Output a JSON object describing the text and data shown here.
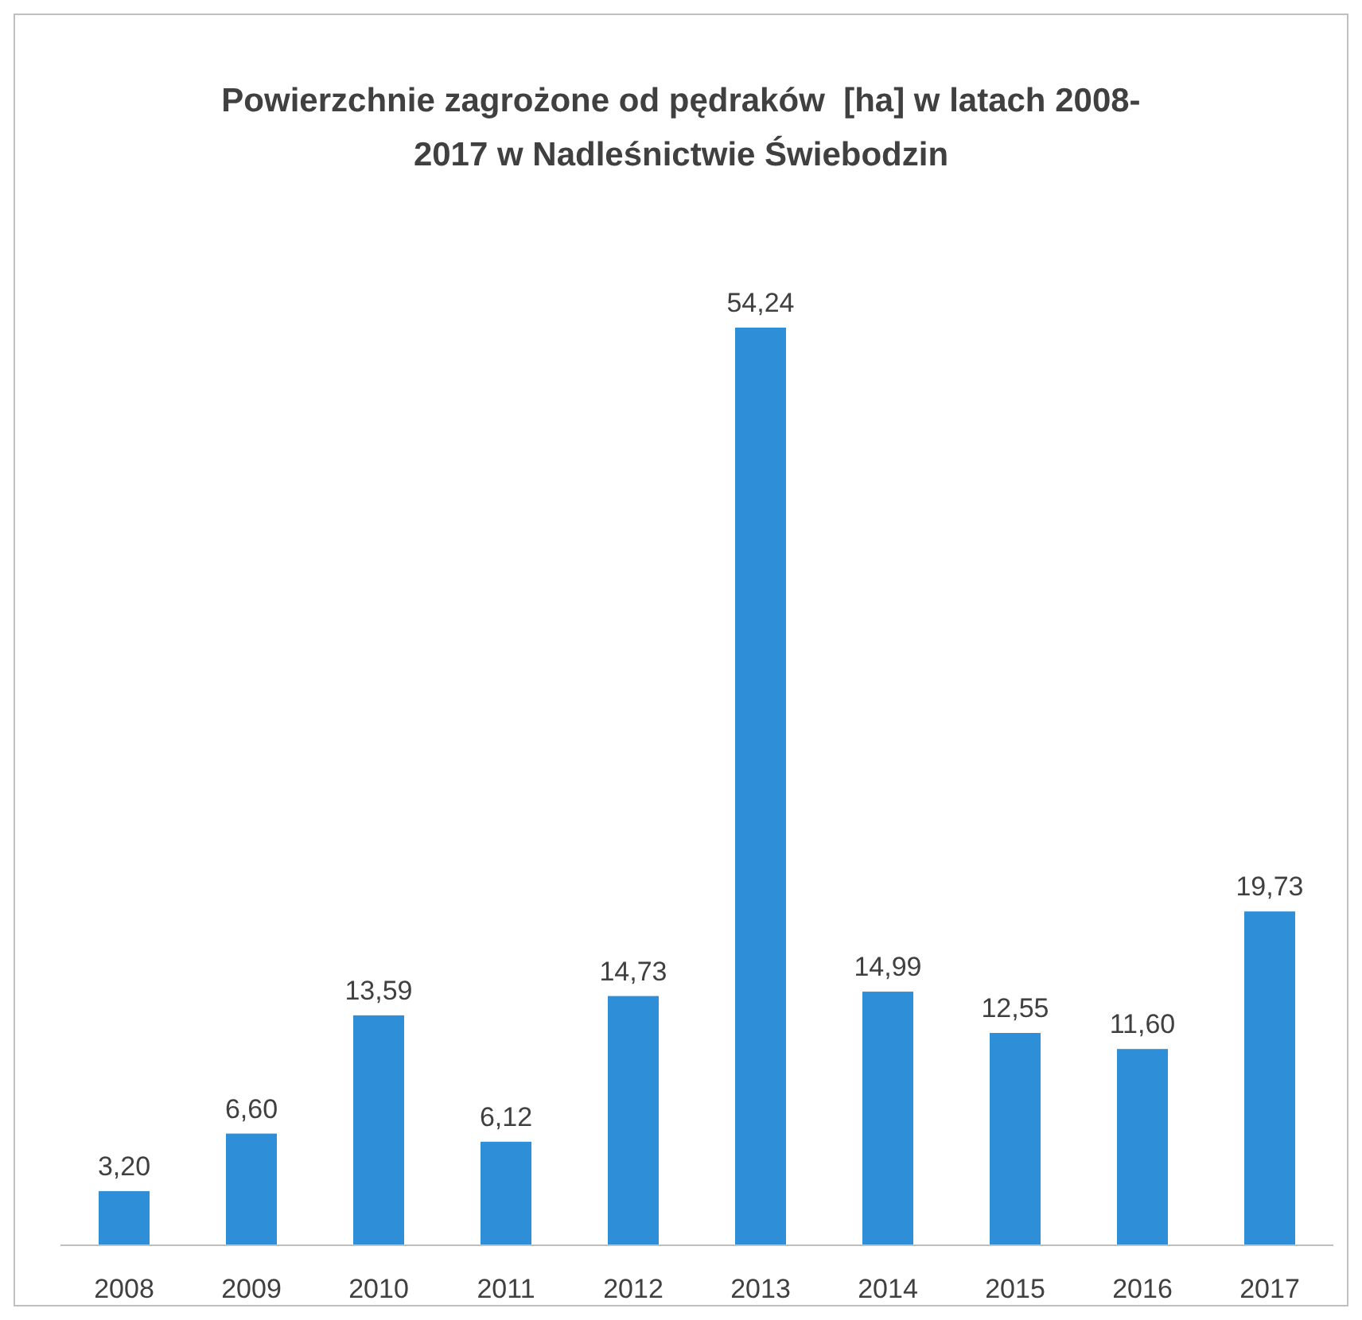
{
  "chart_data": {
    "type": "bar",
    "title": "Powierzchnie zagrożone od pędraków  [ha] w latach 2008-2017 w Nadleśnictwie Świebodzin",
    "categories": [
      "2008",
      "2009",
      "2010",
      "2011",
      "2012",
      "2013",
      "2014",
      "2015",
      "2016",
      "2017"
    ],
    "values": [
      3.2,
      6.6,
      13.59,
      6.12,
      14.73,
      54.24,
      14.99,
      12.55,
      11.6,
      19.73
    ],
    "value_labels": [
      "3,20",
      "6,60",
      "13,59",
      "6,12",
      "14,73",
      "54,24",
      "14,99",
      "12,55",
      "11,60",
      "19,73"
    ],
    "color": "#2e8fd8"
  }
}
